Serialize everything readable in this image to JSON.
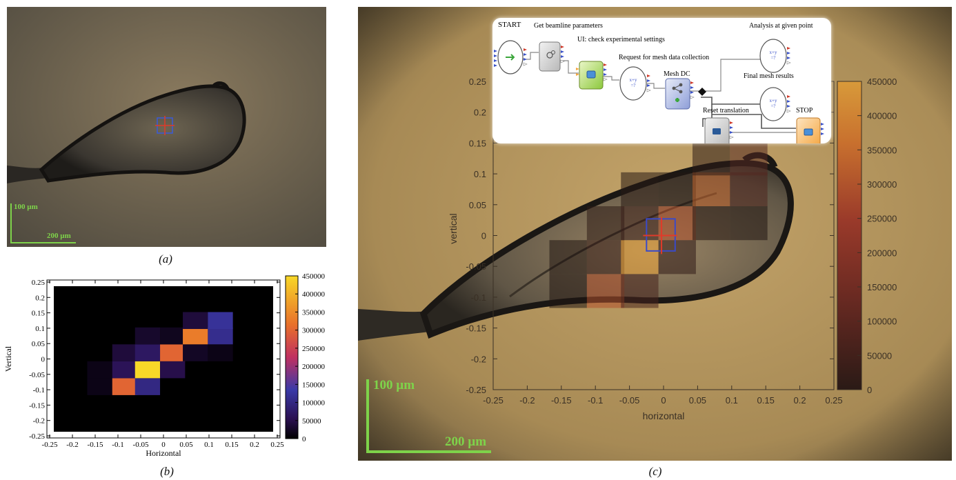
{
  "panel_a": {
    "caption": "(a)",
    "scalebar_vertical": "100 µm",
    "scalebar_horizontal": "200 µm"
  },
  "panel_b": {
    "caption": "(b)",
    "xlabel": "Horizontal",
    "ylabel": "Vertical"
  },
  "panel_c": {
    "caption": "(c)",
    "xlabel": "horizontal",
    "ylabel": "vertical",
    "scalebar_vertical": "100 µm",
    "scalebar_horizontal": "200 µm"
  },
  "workflow": {
    "start": "START",
    "get_beamline": "Get beamline parameters",
    "ui_check": "UI: check experimental settings",
    "request_mesh": "Request for mesh data collection",
    "mesh_dc": "Mesh DC",
    "analysis": "Analysis at given point",
    "final_mesh": "Final mesh results",
    "reset_translation": "Reset translation",
    "stop": "STOP"
  },
  "chart_data": [
    {
      "type": "heatmap",
      "panel": "b",
      "xlabel": "Horizontal",
      "ylabel": "Vertical",
      "xlim": [
        -0.25,
        0.25
      ],
      "ylim": [
        -0.25,
        0.25
      ],
      "x_ticks": [
        "-0.25",
        "-0.2",
        "-0.15",
        "-0.1",
        "-0.05",
        "0",
        "0.05",
        "0.1",
        "0.15",
        "0.2",
        "0.25"
      ],
      "y_ticks": [
        "0.25",
        "0.2",
        "0.15",
        "0.1",
        "0.05",
        "0",
        "-0.05",
        "-0.1",
        "-0.15",
        "-0.2",
        "-0.25"
      ],
      "colorbar_ticks": [
        "450000",
        "400000",
        "350000",
        "300000",
        "250000",
        "200000",
        "150000",
        "100000",
        "50000",
        "0"
      ],
      "colorbar_range": [
        0,
        450000
      ],
      "colormap": "black-purple-red-orange-yellow",
      "cells": [
        {
          "x": -0.14,
          "y": -0.035,
          "value": 15000
        },
        {
          "x": -0.14,
          "y": -0.09,
          "value": 15000
        },
        {
          "x": -0.085,
          "y": -0.09,
          "value": 300000
        },
        {
          "x": -0.035,
          "y": -0.09,
          "value": 100000
        },
        {
          "x": -0.085,
          "y": -0.035,
          "value": 60000
        },
        {
          "x": -0.035,
          "y": -0.035,
          "value": 450000
        },
        {
          "x": 0.02,
          "y": -0.035,
          "value": 50000
        },
        {
          "x": -0.085,
          "y": 0.02,
          "value": 40000
        },
        {
          "x": -0.035,
          "y": 0.02,
          "value": 70000
        },
        {
          "x": 0.02,
          "y": 0.02,
          "value": 300000
        },
        {
          "x": 0.07,
          "y": 0.02,
          "value": 25000
        },
        {
          "x": 0.125,
          "y": 0.02,
          "value": 15000
        },
        {
          "x": -0.035,
          "y": 0.075,
          "value": 30000
        },
        {
          "x": 0.02,
          "y": 0.075,
          "value": 20000
        },
        {
          "x": 0.07,
          "y": 0.075,
          "value": 330000
        },
        {
          "x": 0.125,
          "y": 0.075,
          "value": 110000
        },
        {
          "x": 0.07,
          "y": 0.125,
          "value": 40000
        },
        {
          "x": 0.125,
          "y": 0.125,
          "value": 120000
        }
      ]
    },
    {
      "type": "heatmap",
      "panel": "c",
      "xlabel": "horizontal",
      "ylabel": "vertical",
      "xlim": [
        -0.25,
        0.25
      ],
      "ylim": [
        -0.25,
        0.25
      ],
      "x_ticks": [
        "-0.25",
        "-0.2",
        "-0.15",
        "-0.1",
        "-0.05",
        "0",
        "0.05",
        "0.1",
        "0.15",
        "0.2",
        "0.25"
      ],
      "y_ticks": [
        "0.25",
        "0.2",
        "0.15",
        "0.1",
        "0.05",
        "0",
        "-0.05",
        "-0.1",
        "-0.15",
        "-0.2",
        "-0.25"
      ],
      "colorbar_ticks": [
        "450000",
        "400000",
        "350000",
        "300000",
        "250000",
        "200000",
        "150000",
        "100000",
        "50000",
        "0"
      ],
      "colorbar_range": [
        0,
        450000
      ],
      "colormap": "black-red-orange",
      "overlay": "transparent over crystal image"
    }
  ]
}
